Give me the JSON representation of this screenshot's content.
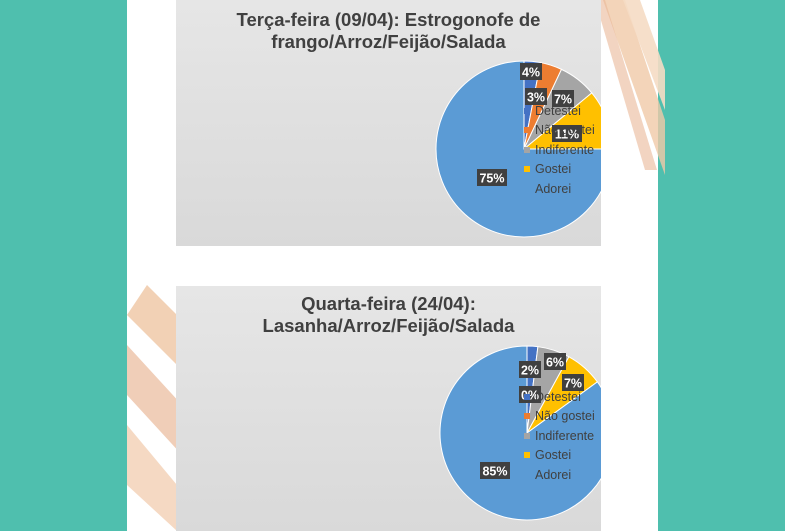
{
  "colors": {
    "background": "#4fbfae",
    "Detestei": "#4472c4",
    "Não gostei": "#ed7d31",
    "Indiferente": "#a5a5a5",
    "Gostei": "#ffc000",
    "Adorei": "#5b9bd5"
  },
  "chart_data": [
    {
      "type": "pie",
      "title": "Terça-feira (09/04): Estrogonofe de frango/Arroz/Feijão/Salada",
      "title_lines": [
        "Terça-feira (09/04): Estrogonofe de",
        "frango/Arroz/Feijão/Salada"
      ],
      "categories": [
        "Detestei",
        "Não gostei",
        "Indiferente",
        "Gostei",
        "Adorei"
      ],
      "values": [
        3,
        4,
        7,
        11,
        75
      ],
      "data_labels": [
        "3%",
        "4%",
        "7%",
        "11%",
        "75%"
      ],
      "legend_position": "right"
    },
    {
      "type": "pie",
      "title": "Quarta-feira (24/04): Lasanha/Arroz/Feijão/Salada",
      "title_lines": [
        "Quarta-feira (24/04):",
        "Lasanha/Arroz/Feijão/Salada"
      ],
      "categories": [
        "Detestei",
        "Não gostei",
        "Indiferente",
        "Gostei",
        "Adorei"
      ],
      "values": [
        2,
        0,
        6,
        7,
        85
      ],
      "data_labels": [
        "2%",
        "0%",
        "6%",
        "7%",
        "85%"
      ],
      "legend_position": "right"
    }
  ]
}
